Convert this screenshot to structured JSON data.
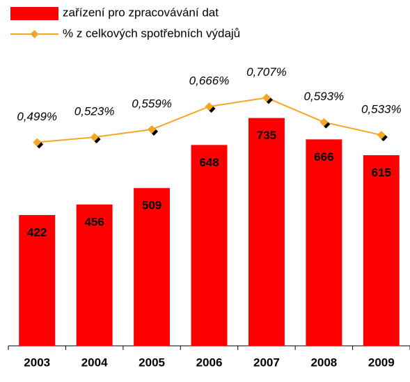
{
  "chart_data": {
    "type": "bar",
    "categories": [
      "2003",
      "2004",
      "2005",
      "2006",
      "2007",
      "2008",
      "2009"
    ],
    "series": [
      {
        "name": "zařízení pro zpracovávání dat",
        "type": "bar",
        "color": "#ff0000",
        "values": [
          422,
          456,
          509,
          648,
          735,
          666,
          615
        ]
      },
      {
        "name": "% z celkových spotřebních výdajů",
        "type": "line",
        "axis": "y2",
        "color": "#f5a623",
        "values": [
          0.499,
          0.523,
          0.559,
          0.666,
          0.707,
          0.593,
          0.533
        ],
        "value_labels": [
          "0,499%",
          "0,523%",
          "0,559%",
          "0,666%",
          "0,707%",
          "0,593%",
          "0,533%"
        ]
      }
    ],
    "ylim": [
      0,
      1100
    ],
    "y2lim": [
      -0.45,
      1.14
    ],
    "legend": "top-left"
  }
}
